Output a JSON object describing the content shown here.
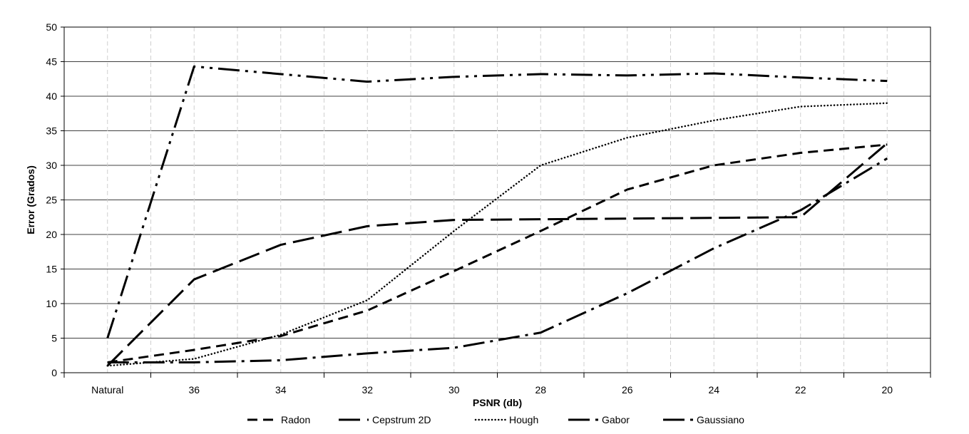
{
  "chart_data": {
    "type": "line",
    "xlabel": "PSNR  (db)",
    "ylabel": "Error  (Grados)",
    "categories": [
      "Natural",
      "36",
      "34",
      "32",
      "30",
      "28",
      "26",
      "24",
      "22",
      "20"
    ],
    "ylim": [
      0,
      50
    ],
    "yticks": [
      0,
      5,
      10,
      15,
      20,
      25,
      30,
      35,
      40,
      45,
      50
    ],
    "grid": "horizontal solid, vertical dashed",
    "legend_position": "bottom",
    "series": [
      {
        "name": "Radon",
        "dash": "radon",
        "values": [
          1.5,
          3.3,
          5.3,
          9.0,
          14.7,
          20.5,
          26.5,
          30.0,
          31.8,
          33.0
        ]
      },
      {
        "name": "Cepstrum 2D",
        "dash": "cepstrum",
        "values": [
          1.0,
          13.5,
          18.5,
          21.2,
          22.1,
          22.2,
          22.3,
          22.4,
          22.5,
          33.2
        ]
      },
      {
        "name": "Hough",
        "dash": "hough",
        "values": [
          1.0,
          2.0,
          5.5,
          10.5,
          20.5,
          30.0,
          34.0,
          36.5,
          38.5,
          39.0
        ]
      },
      {
        "name": "Gabor",
        "dash": "gabor",
        "values": [
          5.0,
          44.3,
          43.2,
          42.1,
          42.8,
          43.2,
          43.0,
          43.3,
          42.7,
          42.2
        ]
      },
      {
        "name": "Gaussiano",
        "dash": "gaussiano",
        "values": [
          1.5,
          1.5,
          1.8,
          2.8,
          3.6,
          5.8,
          11.5,
          18.0,
          23.5,
          31.0
        ]
      }
    ]
  }
}
